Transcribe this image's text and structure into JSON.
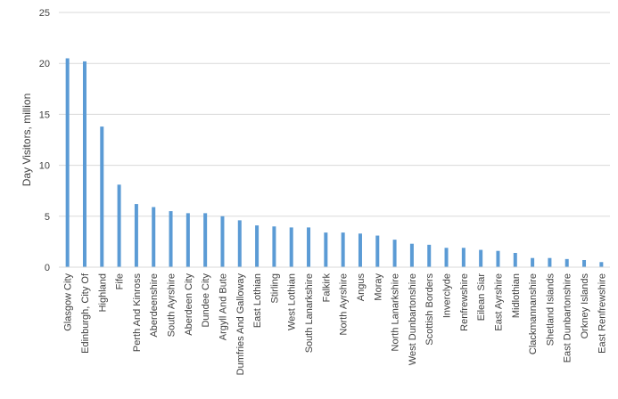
{
  "chart_data": {
    "type": "bar",
    "title": "",
    "xlabel": "",
    "ylabel": "Day Visitors, million",
    "ylim": [
      0,
      25
    ],
    "yticks": [
      0,
      5,
      10,
      15,
      20,
      25
    ],
    "grid": true,
    "legend": "none",
    "bar_color": "#5B9BD5",
    "grid_color": "#D9D9D9",
    "categories": [
      "Glasgow City",
      "Edinburgh, City Of",
      "Highland",
      "Fife",
      "Perth And Kinross",
      "Aberdeenshire",
      "South Ayrshire",
      "Aberdeen City",
      "Dundee City",
      "Argyll And Bute",
      "Dumfries And Galloway",
      "East Lothian",
      "Stirling",
      "West Lothian",
      "South Lanarkshire",
      "Falkirk",
      "North Ayrshire",
      "Angus",
      "Moray",
      "North Lanarkshire",
      "West Dunbartonshire",
      "Scottish Borders",
      "Inverclyde",
      "Renfrewshire",
      "Eilean Siar",
      "East Ayrshire",
      "Midlothian",
      "Clackmannanshire",
      "Shetland Islands",
      "East Dunbartonshire",
      "Orkney Islands",
      "East Renfrewshire"
    ],
    "values": [
      20.5,
      20.2,
      13.8,
      8.1,
      6.2,
      5.9,
      5.5,
      5.3,
      5.3,
      5.0,
      4.6,
      4.1,
      4.0,
      3.9,
      3.9,
      3.4,
      3.4,
      3.3,
      3.1,
      2.7,
      2.3,
      2.2,
      1.9,
      1.9,
      1.7,
      1.6,
      1.4,
      0.9,
      0.9,
      0.8,
      0.7,
      0.5
    ]
  }
}
